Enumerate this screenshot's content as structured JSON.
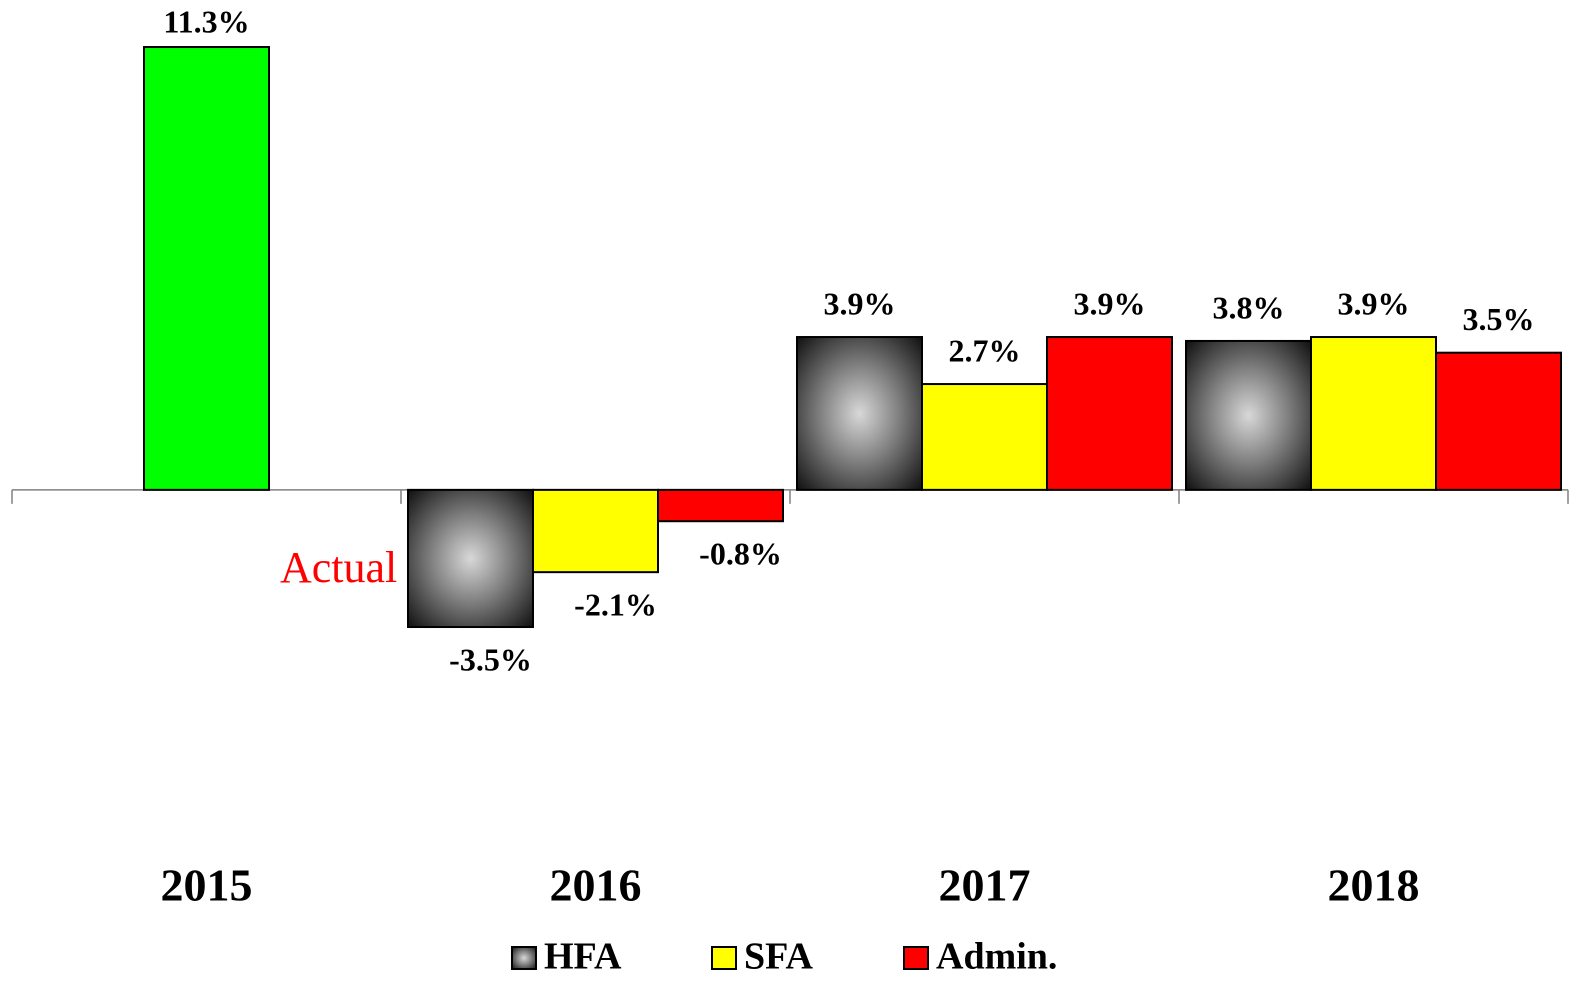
{
  "chart_data": {
    "type": "bar",
    "categories": [
      "2015",
      "2016",
      "2017",
      "2018"
    ],
    "ylim": [
      -6,
      12.5
    ],
    "series": [
      {
        "name": "HFA",
        "color": "#808080",
        "values": [
          null,
          -3.5,
          3.9,
          3.8
        ],
        "value_labels": [
          null,
          "-3.5%",
          "3.9%",
          "3.8%"
        ]
      },
      {
        "name": "SFA",
        "color": "#ffff00",
        "values": [
          null,
          -2.1,
          2.7,
          3.9
        ],
        "value_labels": [
          null,
          "-2.1%",
          "2.7%",
          "3.9%"
        ]
      },
      {
        "name": "Admin.",
        "color": "#ff0000",
        "values": [
          null,
          -0.8,
          3.9,
          3.5
        ],
        "value_labels": [
          null,
          "-0.8%",
          "3.9%",
          "3.5%"
        ]
      }
    ],
    "extra_series": [
      {
        "color": "#00ff00",
        "values": [
          11.3,
          null,
          null,
          null
        ],
        "value_labels": [
          "11.3%",
          null,
          null,
          null
        ]
      }
    ],
    "annotations": [
      {
        "text": "Actual"
      }
    ]
  }
}
